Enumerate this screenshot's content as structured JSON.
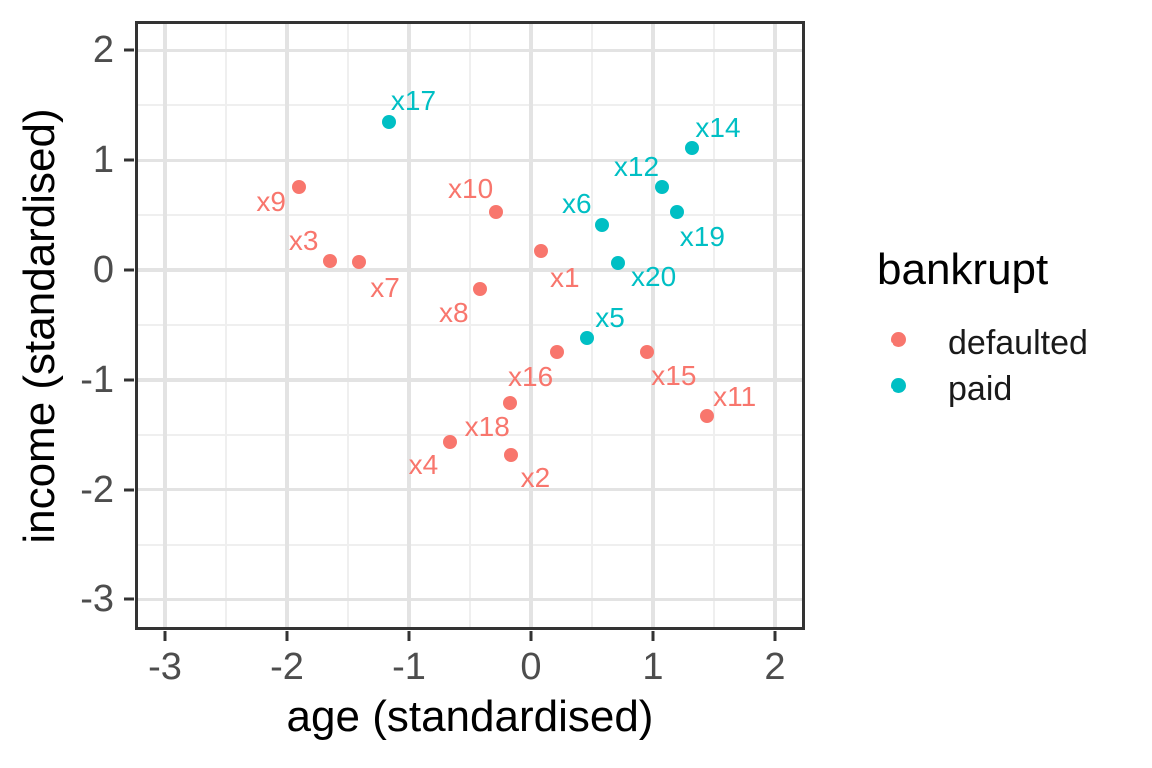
{
  "chart_data": {
    "type": "scatter",
    "title": "",
    "xlabel": "age (standardised)",
    "ylabel": "income (standardised)",
    "x_domain": [
      -3.23,
      2.23
    ],
    "y_domain": [
      -3.26,
      2.25
    ],
    "x_ticks": [
      -3,
      -2,
      -1,
      0,
      1,
      2
    ],
    "y_ticks": [
      -3,
      -2,
      -1,
      0,
      1,
      2
    ],
    "x_minor_gridlines": [
      -2.5,
      -1.5,
      -0.5,
      0.5,
      1.5
    ],
    "y_minor_gridlines": [
      -2.5,
      -1.5,
      -0.5,
      0.5,
      1.5
    ],
    "grid": "major+minor",
    "legend": {
      "title": "bankrupt",
      "position": "right",
      "entries": [
        {
          "label": "defaulted",
          "group": "defaulted"
        },
        {
          "label": "paid",
          "group": "paid"
        }
      ]
    },
    "group_colors": {
      "defaulted": "#F8766D",
      "paid": "#00BFC4"
    },
    "points": [
      {
        "label": "x1",
        "x": 0.08,
        "y": 0.17,
        "group": "defaulted",
        "label_offset": [
          24,
          27
        ]
      },
      {
        "label": "x2",
        "x": -0.16,
        "y": -1.68,
        "group": "defaulted",
        "label_offset": [
          24,
          23
        ]
      },
      {
        "label": "x3",
        "x": -1.65,
        "y": 0.08,
        "group": "defaulted",
        "label_offset": [
          -26,
          -20
        ]
      },
      {
        "label": "x4",
        "x": -0.66,
        "y": -1.57,
        "group": "defaulted",
        "label_offset": [
          -27,
          23
        ]
      },
      {
        "label": "x5",
        "x": 0.46,
        "y": -0.62,
        "group": "paid",
        "label_offset": [
          23,
          -20
        ]
      },
      {
        "label": "x6",
        "x": 0.58,
        "y": 0.41,
        "group": "paid",
        "label_offset": [
          -25,
          -21
        ]
      },
      {
        "label": "x7",
        "x": -1.41,
        "y": 0.07,
        "group": "defaulted",
        "label_offset": [
          26,
          26
        ]
      },
      {
        "label": "x8",
        "x": -0.42,
        "y": -0.17,
        "group": "defaulted",
        "label_offset": [
          -26,
          24
        ]
      },
      {
        "label": "x9",
        "x": -1.9,
        "y": 0.76,
        "group": "defaulted",
        "label_offset": [
          -28,
          15
        ]
      },
      {
        "label": "x10",
        "x": -0.29,
        "y": 0.53,
        "group": "defaulted",
        "label_offset": [
          -25,
          -23
        ]
      },
      {
        "label": "x11",
        "x": 1.44,
        "y": -1.33,
        "group": "defaulted",
        "label_offset": [
          28,
          -19
        ]
      },
      {
        "label": "x12",
        "x": 1.07,
        "y": 0.76,
        "group": "paid",
        "label_offset": [
          -25,
          -20
        ]
      },
      {
        "label": "x14",
        "x": 1.32,
        "y": 1.11,
        "group": "paid",
        "label_offset": [
          26,
          -20
        ]
      },
      {
        "label": "x15",
        "x": 0.95,
        "y": -0.75,
        "group": "defaulted",
        "label_offset": [
          27,
          24
        ]
      },
      {
        "label": "x16",
        "x": 0.21,
        "y": -0.75,
        "group": "defaulted",
        "label_offset": [
          -26,
          25
        ]
      },
      {
        "label": "x17",
        "x": -1.16,
        "y": 1.35,
        "group": "paid",
        "label_offset": [
          24,
          -21
        ]
      },
      {
        "label": "x18",
        "x": -0.17,
        "y": -1.21,
        "group": "defaulted",
        "label_offset": [
          -23,
          24
        ]
      },
      {
        "label": "x19",
        "x": 1.2,
        "y": 0.53,
        "group": "paid",
        "label_offset": [
          25,
          25
        ]
      },
      {
        "label": "x20",
        "x": 0.71,
        "y": 0.06,
        "group": "paid",
        "label_offset": [
          36,
          14
        ]
      }
    ]
  }
}
